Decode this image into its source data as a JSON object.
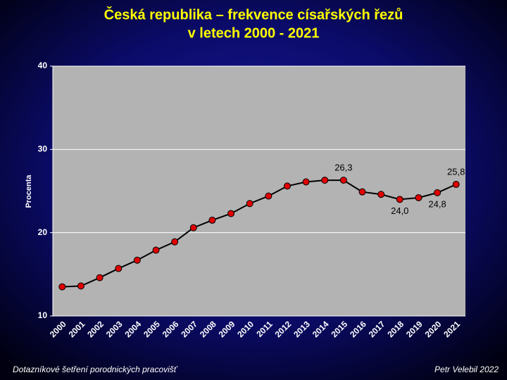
{
  "chart_data": {
    "type": "line",
    "title": "Česká republika – frekvence císařských řezů",
    "subtitle": "v letech 2000 - 2021",
    "y_label": "Procenta",
    "categories": [
      "2000",
      "2001",
      "2002",
      "2003",
      "2004",
      "2005",
      "2006",
      "2007",
      "2008",
      "2009",
      "2010",
      "2011",
      "2012",
      "2013",
      "2014",
      "2015",
      "2016",
      "2017",
      "2018",
      "2019",
      "2020",
      "2021"
    ],
    "values": [
      13.5,
      13.6,
      14.6,
      15.7,
      16.7,
      17.9,
      18.9,
      20.6,
      21.5,
      22.3,
      23.5,
      24.4,
      25.6,
      26.1,
      26.3,
      26.3,
      24.9,
      24.6,
      24.0,
      24.2,
      24.8,
      25.8
    ],
    "value_labels": [
      null,
      null,
      null,
      null,
      null,
      null,
      null,
      null,
      null,
      null,
      null,
      null,
      null,
      null,
      null,
      "26,3",
      null,
      null,
      "24,0",
      null,
      "24,8",
      "25,8"
    ],
    "color": "#000000",
    "marker_color": "#e00000",
    "ylim": [
      10,
      40
    ],
    "yticks": [
      10,
      20,
      30,
      40
    ],
    "grid": true,
    "footer_left": "Dotazníkové šetření porodnických pracovišť",
    "footer_right": "Petr Velebil 2022"
  }
}
